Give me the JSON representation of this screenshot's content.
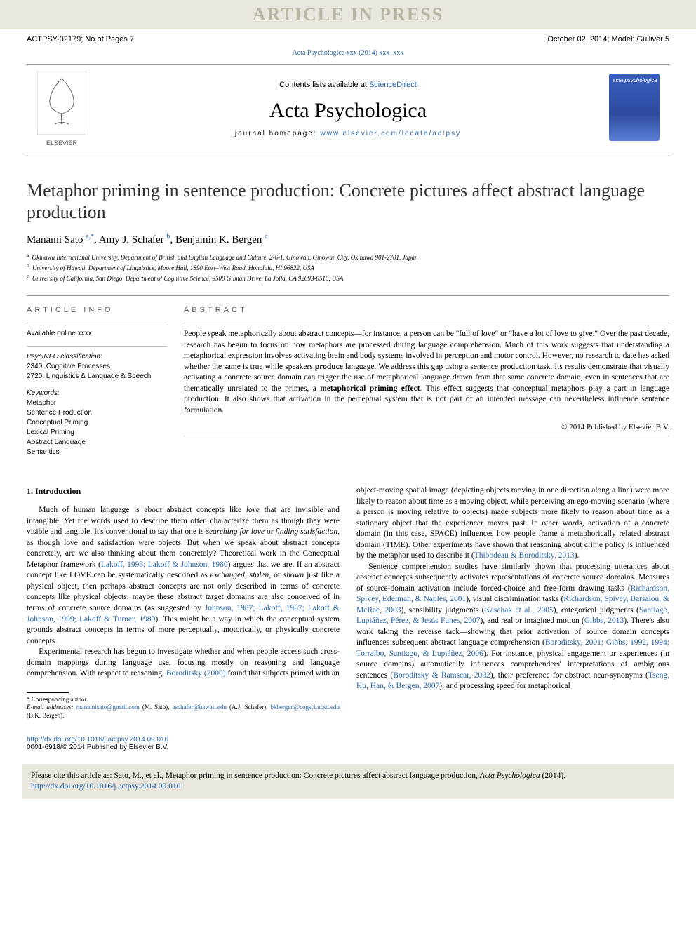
{
  "watermark": "ARTICLE IN PRESS",
  "header": {
    "left": "ACTPSY-02179; No of Pages 7",
    "right": "October 02, 2014;   Model: Gulliver 5"
  },
  "journal_ref_line": {
    "text": "Acta Psychologica xxx (2014) xxx–xxx"
  },
  "masthead": {
    "contents_prefix": "Contents lists available at ",
    "contents_link": "ScienceDirect",
    "journal_name": "Acta Psychologica",
    "homepage_label": "journal homepage: ",
    "homepage_url": "www.elsevier.com/locate/actpsy",
    "publisher_label": "ELSEVIER",
    "cover_label": "acta psychologica"
  },
  "title": "Metaphor priming in sentence production: Concrete pictures affect abstract language production",
  "authors_html": "Manami Sato <sup>a,*</sup>, Amy J. Schafer <sup>b</sup>, Benjamin K. Bergen <sup>c</sup>",
  "affiliations": [
    {
      "sup": "a",
      "text": "Okinawa International University, Department of British and English Language and Culture, 2-6-1, Ginowan, Ginowan City, Okinawa 901-2701, Japan"
    },
    {
      "sup": "b",
      "text": "University of Hawaii, Department of Linguistics, Moore Hall, 1890 East–West Road, Honolulu, HI 96822, USA"
    },
    {
      "sup": "c",
      "text": "University of California, San Diego, Department of Cognitive Science, 9500 Gilman Drive, La Jolla, CA 92093-0515, USA"
    }
  ],
  "article_info": {
    "label": "article info",
    "available": "Available online xxxx",
    "classification_label": "PsycINFO classification:",
    "classifications": [
      "2340, Cognitive Processes",
      "2720, Linguistics & Language & Speech"
    ],
    "keywords_label": "Keywords:",
    "keywords": [
      "Metaphor",
      "Sentence Production",
      "Conceptual Priming",
      "Lexical Priming",
      "Abstract Language",
      "Semantics"
    ]
  },
  "abstract": {
    "label": "abstract",
    "text_parts": [
      "People speak metaphorically about abstract concepts—for instance, a person can be \"full of love\" or \"have a lot of love to give.\" Over the past decade, research has begun to focus on how metaphors are processed during language comprehension. Much of this work suggests that understanding a metaphorical expression involves activating brain and body systems involved in perception and motor control. However, no research to date has asked whether the same is true while speakers ",
      "produce",
      " language. We address this gap using a sentence production task. Its results demonstrate that visually activating a concrete source domain can trigger the use of metaphorical language drawn from that same concrete domain, even in sentences that are thematically unrelated to the primes, a ",
      "metaphorical priming effect",
      ". This effect suggests that conceptual metaphors play a part in language production. It also shows that activation in the perceptual system that is not part of an intended message can nevertheless influence sentence formulation."
    ],
    "copyright": "© 2014 Published by Elsevier B.V."
  },
  "body": {
    "section_heading": "1. Introduction",
    "col1_paras": [
      "Much of human language is about abstract concepts like <i>love</i> that are invisible and intangible. Yet the words used to describe them often characterize them as though they were visible and tangible. It's conventional to say that one is <i>searching for love</i> or <i>finding satisfaction</i>, as though love and satisfaction were objects. But when we speak about abstract concepts concretely, are we also thinking about them concretely? Theoretical work in the Conceptual Metaphor framework (<a class='link'>Lakoff, 1993; Lakoff & Johnson, 1980</a>) argues that we are. If an abstract concept like LOVE can be systematically described as <i>exchanged, stolen</i>, or <i>shown</i> just like a physical object, then perhaps abstract concepts are not only described in terms of concrete concepts like physical objects; maybe these abstract target domains are also conceived of in terms of concrete source domains (as suggested by <a class='link'>Johnson, 1987; Lakoff, 1987; Lakoff & Johnson, 1999; Lakoff & Turner, 1989</a>). This might be a way in which the conceptual system grounds abstract concepts in terms of more perceptually, motorically, or physically concrete concepts.",
      "Experimental research has begun to investigate whether and when people access such cross-domain mappings during language use, focusing mostly on reasoning and language comprehension. With respect to reasoning, <a class='link'>Boroditsky (2000)</a> found that subjects primed with an"
    ],
    "col2_paras": [
      "object-moving spatial image (depicting objects moving in one direction along a line) were more likely to reason about time as a moving object, while perceiving an ego-moving scenario (where a person is moving relative to objects) made subjects more likely to reason about time as a stationary object that the experiencer moves past. In other words, activation of a concrete domain (in this case, SPACE) influences how people frame a metaphorically related abstract domain (TIME). Other experiments have shown that reasoning about crime policy is influenced by the metaphor used to describe it (<a class='link'>Thibodeau & Boroditsky, 2013</a>).",
      "Sentence comprehension studies have similarly shown that processing utterances about abstract concepts subsequently activates representations of concrete source domains. Measures of source-domain activation include forced-choice and free-form drawing tasks (<a class='link'>Richardson, Spivey, Edelman, & Naples, 2001</a>), visual discrimination tasks (<a class='link'>Richardson, Spivey, Barsalou, & McRae, 2003</a>), sensibility judgments (<a class='link'>Kaschak et al., 2005</a>), categorical judgments (<a class='link'>Santiago, Lupiáñez, Pérez, & Jesús Funes, 2007</a>), and real or imagined motion (<a class='link'>Gibbs, 2013</a>). There's also work taking the reverse tack—showing that prior activation of source domain concepts influences subsequent abstract language comprehension (<a class='link'>Boroditsky, 2001; Gibbs, 1992, 1994; Torralbo, Santiago, & Lupiáñez, 2006</a>). For instance, physical engagement or experiences (in source domains) automatically influences comprehenders' interpretations of ambiguous sentences (<a class='link'>Boroditsky & Ramscar, 2002</a>), their preference for abstract near-synonyms (<a class='link'>Tseng, Hu, Han, & Bergen, 2007</a>), and processing speed for metaphorical"
    ]
  },
  "footnotes": {
    "corresponding": "* Corresponding author.",
    "emails_label": "E-mail addresses:",
    "emails": [
      {
        "addr": "manamisato@gmail.com",
        "who": "(M. Sato)"
      },
      {
        "addr": "aschafer@hawaii.edu",
        "who": "(A.J. Schafer)"
      },
      {
        "addr": "bkbergen@cogsci.ucsd.edu",
        "who": "(B.K. Bergen)."
      }
    ]
  },
  "doi": {
    "url": "http://dx.doi.org/10.1016/j.actpsy.2014.09.010",
    "issn_line": "0001-6918/© 2014 Published by Elsevier B.V."
  },
  "cite_box": {
    "prefix": "Please cite this article as: Sato, M., et al., Metaphor priming in sentence production: Concrete pictures affect abstract language production, ",
    "journal_italic": "Acta Psychologica",
    "suffix": " (2014), ",
    "link": "http://dx.doi.org/10.1016/j.actpsy.2014.09.010"
  },
  "colors": {
    "link": "#2862a8",
    "watermark_bg": "#e8e6dd",
    "watermark_fg": "#b8b5a3"
  }
}
